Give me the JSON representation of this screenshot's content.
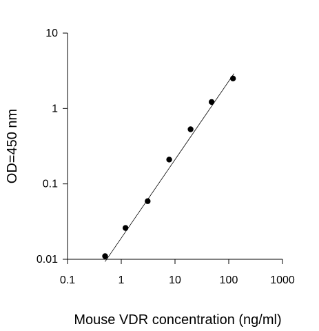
{
  "chart_data": {
    "type": "scatter",
    "xlabel": "Mouse VDR concentration (ng/ml)",
    "ylabel": "OD=450 nm",
    "xscale": "log",
    "yscale": "log",
    "xlim": [
      0.1,
      1000
    ],
    "ylim": [
      0.01,
      10
    ],
    "x_tick_labels": [
      "0.1",
      "1",
      "10",
      "100",
      "1000"
    ],
    "x_tick_values": [
      0.1,
      1,
      10,
      100,
      1000
    ],
    "y_tick_labels": [
      "0.01",
      "0.1",
      "1",
      "10"
    ],
    "y_tick_values": [
      0.01,
      0.1,
      1,
      10
    ],
    "grid": false,
    "marker_color": "#000000",
    "line_color": "#000000",
    "points": [
      {
        "x": 0.5,
        "y": 0.011
      },
      {
        "x": 1.2,
        "y": 0.026
      },
      {
        "x": 3.1,
        "y": 0.059
      },
      {
        "x": 7.8,
        "y": 0.21
      },
      {
        "x": 19.5,
        "y": 0.53
      },
      {
        "x": 48,
        "y": 1.22
      },
      {
        "x": 120,
        "y": 2.5
      }
    ],
    "fit_line": {
      "type": "linear-fit-on-log-log",
      "points": [
        {
          "x": 0.5,
          "y": 0.0093
        },
        {
          "x": 125,
          "y": 2.9
        }
      ]
    }
  }
}
